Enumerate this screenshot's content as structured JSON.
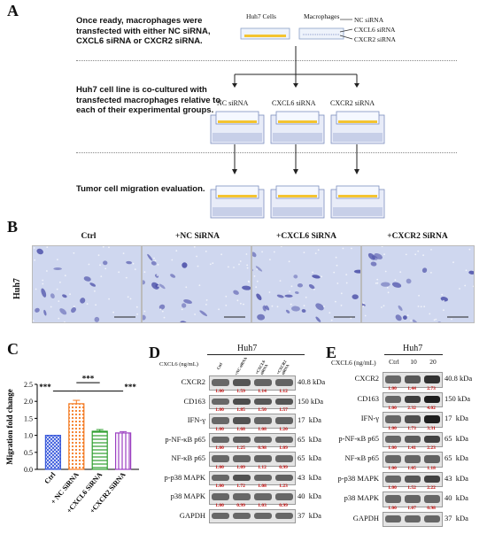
{
  "panels": {
    "A": "A",
    "B": "B",
    "C": "C",
    "D": "D",
    "E": "E"
  },
  "panelA": {
    "steps": [
      "Once ready, macrophages were transfected with either NC siRNA, CXCL6 siRNA or CXCR2 siRNA.",
      "Huh7 cell line is co-cultured with transfected macrophages relative to each of their experimental groups.",
      "Tumor cell migration evaluation."
    ],
    "huh7_cells": "Huh7 Cells",
    "macrophages": "Macrophages",
    "legend": [
      "NC siRNA",
      "CXCL6 siRNA",
      "CXCR2 siRNA"
    ],
    "groups": [
      "NC siRNA",
      "CXCL6 siRNA",
      "CXCR2 siRNA"
    ]
  },
  "panelB": {
    "row_label": "Huh7",
    "columns": [
      "Ctrl",
      "+NC SiRNA",
      "+CXCL6 SiRNA",
      "+CXCR2 SiRNA"
    ]
  },
  "colors": {
    "bar_ctrl": "#3b5bdb",
    "bar_nc": "#f47920",
    "bar_cxcl6": "#2e9e2e",
    "bar_cxcr2": "#9b3fc1",
    "value_red": "#c00000",
    "micrograph": "#cfd7ef"
  },
  "chart_data": {
    "type": "bar",
    "categories": [
      "Ctrl",
      "+ NC SiRNA",
      "+CXCL6 SiRNA",
      "+CXCR2 SiRNA"
    ],
    "values": [
      1.0,
      1.93,
      1.12,
      1.07
    ],
    "errors": [
      0.0,
      0.1,
      0.05,
      0.04
    ],
    "ylabel": "Migration fold change",
    "ylim": [
      0,
      2.5
    ],
    "yticks": [
      "0.0",
      "0.5",
      "1.0",
      "1.5",
      "2.0",
      "2.5"
    ],
    "significance": [
      "***",
      "***",
      "***"
    ]
  },
  "panelD": {
    "title": "Huh7",
    "treatment_label": "CXCL6 (ng/mL)",
    "columns": [
      "Ctrl",
      "+NC siRNA",
      "+CXCL6 siRNA",
      "+CXCR2 siRNA"
    ],
    "rows": [
      {
        "name": "CXCR2",
        "kda": "40.8 kDa",
        "values": [
          "1.00",
          "1.59",
          "1.14",
          "1.12"
        ]
      },
      {
        "name": "CD163",
        "kda": "150 kDa",
        "values": [
          "1.00",
          "1.85",
          "1.50",
          "1.57"
        ]
      },
      {
        "name": "IFN-γ",
        "kda": "17  kDa",
        "values": [
          "1.00",
          "1.68",
          "1.08",
          "1.20"
        ]
      },
      {
        "name": "p-NF-κB p65",
        "kda": "65  kDa",
        "values": [
          "1.00",
          "1.25",
          "0.98",
          "1.09"
        ]
      },
      {
        "name": "NF-κB p65",
        "kda": "65  kDa",
        "values": [
          "1.00",
          "1.09",
          "1.12",
          "0.99"
        ]
      },
      {
        "name": "p-p38 MAPK",
        "kda": "43  kDa",
        "values": [
          "1.00",
          "1.72",
          "1.08",
          "1.23"
        ]
      },
      {
        "name": "p38 MAPK",
        "kda": "40  kDa",
        "values": [
          "1.00",
          "0.99",
          "1.03",
          "0.99"
        ]
      },
      {
        "name": "GAPDH",
        "kda": "37  kDa",
        "values": []
      }
    ]
  },
  "panelE": {
    "title": "Huh7",
    "treatment_label": "CXCL6 (ng/mL)",
    "columns": [
      "Ctrl",
      "10",
      "20"
    ],
    "rows": [
      {
        "name": "CXCR2",
        "kda": "40.8 kDa",
        "values": [
          "1.00",
          "1.44",
          "2.73"
        ]
      },
      {
        "name": "CD163",
        "kda": "150 kDa",
        "values": [
          "1.00",
          "2.32",
          "4.02"
        ]
      },
      {
        "name": "IFN-γ",
        "kda": "17  kDa",
        "values": [
          "1.00",
          "1.73",
          "3.31"
        ]
      },
      {
        "name": "p-NF-κB p65",
        "kda": "65  kDa",
        "values": [
          "1.00",
          "1.41",
          "2.23"
        ]
      },
      {
        "name": "NF-κB p65",
        "kda": "65  kDa",
        "values": [
          "1.00",
          "1.05",
          "1.18"
        ]
      },
      {
        "name": "p-p38 MAPK",
        "kda": "43  kDa",
        "values": [
          "1.00",
          "1.52",
          "2.22"
        ]
      },
      {
        "name": "p38 MAPK",
        "kda": "40  kDa",
        "values": [
          "1.00",
          "1.07",
          "0.98"
        ]
      },
      {
        "name": "GAPDH",
        "kda": "37  kDa",
        "values": []
      }
    ]
  }
}
